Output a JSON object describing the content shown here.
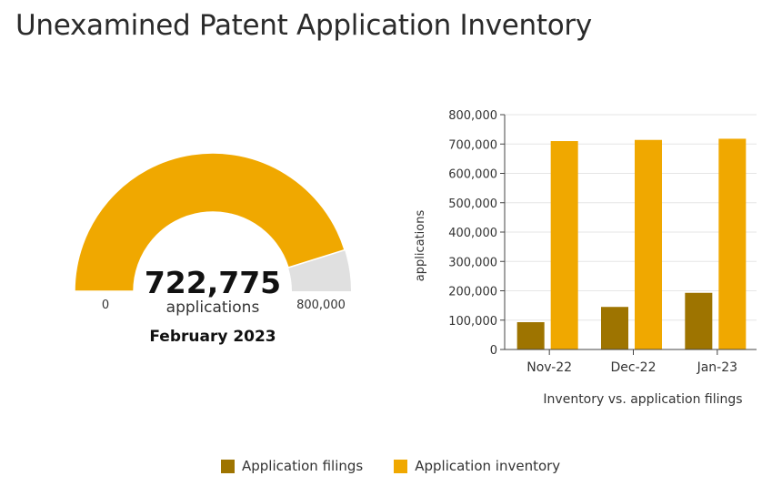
{
  "title": "Unexamined Patent Application Inventory",
  "colors": {
    "filings": "#9e7400",
    "inventory": "#f0a800",
    "gauge_rest": "#e0e0e0"
  },
  "gauge": {
    "value": 722775,
    "value_label": "722,775",
    "unit": "applications",
    "period": "February 2023",
    "min_label": "0",
    "max_label": "800,000",
    "min": 0,
    "max": 800000
  },
  "chart_data": {
    "type": "bar",
    "categories": [
      "Nov-22",
      "Dec-22",
      "Jan-23"
    ],
    "series": [
      {
        "name": "Application filings",
        "values": [
          93000,
          145000,
          193000
        ]
      },
      {
        "name": "Application inventory",
        "values": [
          710000,
          714000,
          718000
        ]
      }
    ],
    "ylabel": "applications",
    "xlabel": "Inventory vs. application filings",
    "ylim": [
      0,
      800000
    ],
    "yticks": [
      "0",
      "100,000",
      "200,000",
      "300,000",
      "400,000",
      "500,000",
      "600,000",
      "700,000",
      "800,000"
    ],
    "yticks_values": [
      0,
      100000,
      200000,
      300000,
      400000,
      500000,
      600000,
      700000,
      800000
    ],
    "grid": true,
    "legend": "bottom-center"
  }
}
